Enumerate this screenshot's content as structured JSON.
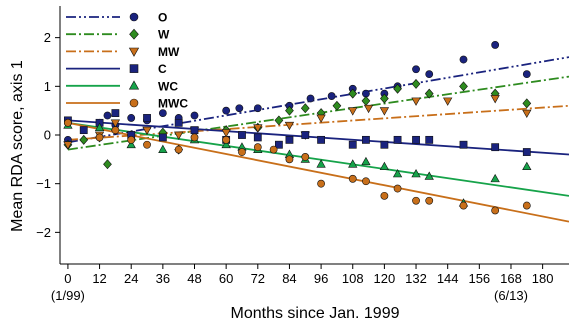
{
  "chart_data": {
    "type": "scatter",
    "title": "",
    "xlabel": "Months since Jan. 1999",
    "ylabel": "Mean RDA score, axis 1",
    "xlim": [
      -3,
      190
    ],
    "ylim": [
      -2.65,
      2.65
    ],
    "xticks": [
      0,
      12,
      24,
      36,
      48,
      60,
      72,
      84,
      96,
      108,
      120,
      132,
      144,
      156,
      168,
      180
    ],
    "yticks": [
      -2,
      -1,
      0,
      1,
      2
    ],
    "x_tick_notes": [
      {
        "x": 0,
        "label": "(1/99)"
      },
      {
        "x": 168,
        "label": "(6/13)"
      }
    ],
    "legend_position": "top-left",
    "grid": false,
    "series": [
      {
        "name": "O",
        "color": "#1a237e",
        "marker": "circle",
        "line_style": "dash-dot-dot",
        "trend": [
          [
            0,
            -0.15
          ],
          [
            190,
            1.6
          ]
        ],
        "points": [
          [
            0,
            -0.1
          ],
          [
            12,
            0.25
          ],
          [
            15,
            0.4
          ],
          [
            18,
            0.2
          ],
          [
            24,
            0.35
          ],
          [
            30,
            0.3
          ],
          [
            36,
            0.45
          ],
          [
            42,
            0.35
          ],
          [
            48,
            0.4
          ],
          [
            60,
            0.5
          ],
          [
            65,
            0.55
          ],
          [
            72,
            0.55
          ],
          [
            84,
            0.6
          ],
          [
            92,
            0.75
          ],
          [
            100,
            0.8
          ],
          [
            108,
            0.95
          ],
          [
            113,
            0.85
          ],
          [
            120,
            0.85
          ],
          [
            125,
            1.0
          ],
          [
            132,
            1.35
          ],
          [
            137,
            1.25
          ],
          [
            150,
            1.55
          ],
          [
            162,
            1.85
          ],
          [
            174,
            1.25
          ]
        ]
      },
      {
        "name": "W",
        "color": "#2e8b1f",
        "marker": "diamond",
        "line_style": "dash-dot",
        "trend": [
          [
            0,
            -0.3
          ],
          [
            190,
            1.2
          ]
        ],
        "points": [
          [
            0,
            -0.2
          ],
          [
            6,
            -0.1
          ],
          [
            12,
            -0.05
          ],
          [
            15,
            -0.6
          ],
          [
            18,
            0.1
          ],
          [
            24,
            0.0
          ],
          [
            36,
            0.05
          ],
          [
            42,
            -0.3
          ],
          [
            60,
            0.1
          ],
          [
            72,
            0.15
          ],
          [
            80,
            0.3
          ],
          [
            84,
            0.5
          ],
          [
            90,
            0.55
          ],
          [
            96,
            0.45
          ],
          [
            102,
            0.6
          ],
          [
            108,
            0.85
          ],
          [
            113,
            0.7
          ],
          [
            120,
            0.75
          ],
          [
            125,
            0.95
          ],
          [
            132,
            1.05
          ],
          [
            137,
            0.85
          ],
          [
            150,
            1.0
          ],
          [
            162,
            0.85
          ],
          [
            174,
            0.65
          ]
        ]
      },
      {
        "name": "MW",
        "color": "#c86f1a",
        "marker": "triangle-down",
        "line_style": "dash-dot",
        "trend": [
          [
            0,
            -0.1
          ],
          [
            190,
            0.6
          ]
        ],
        "points": [
          [
            0,
            -0.2
          ],
          [
            12,
            0.0
          ],
          [
            18,
            0.25
          ],
          [
            24,
            0.0
          ],
          [
            30,
            0.1
          ],
          [
            42,
            0.0
          ],
          [
            48,
            0.1
          ],
          [
            60,
            0.05
          ],
          [
            72,
            0.15
          ],
          [
            84,
            0.2
          ],
          [
            90,
            0.0
          ],
          [
            96,
            0.35
          ],
          [
            108,
            0.5
          ],
          [
            114,
            0.55
          ],
          [
            120,
            0.5
          ],
          [
            132,
            0.7
          ],
          [
            144,
            0.7
          ],
          [
            162,
            0.75
          ],
          [
            174,
            0.45
          ]
        ]
      },
      {
        "name": "C",
        "color": "#1a237e",
        "marker": "square",
        "line_style": "solid",
        "trend": [
          [
            0,
            0.3
          ],
          [
            190,
            -0.4
          ]
        ],
        "points": [
          [
            0,
            0.3
          ],
          [
            6,
            0.1
          ],
          [
            12,
            0.25
          ],
          [
            18,
            0.45
          ],
          [
            24,
            0.0
          ],
          [
            30,
            0.35
          ],
          [
            36,
            -0.05
          ],
          [
            42,
            0.25
          ],
          [
            48,
            0.1
          ],
          [
            60,
            -0.1
          ],
          [
            66,
            0.0
          ],
          [
            72,
            -0.05
          ],
          [
            80,
            -0.2
          ],
          [
            84,
            -0.1
          ],
          [
            90,
            0.0
          ],
          [
            96,
            -0.1
          ],
          [
            108,
            -0.2
          ],
          [
            113,
            -0.1
          ],
          [
            120,
            -0.2
          ],
          [
            125,
            -0.1
          ],
          [
            132,
            -0.1
          ],
          [
            137,
            -0.1
          ],
          [
            150,
            -0.2
          ],
          [
            162,
            -0.25
          ],
          [
            174,
            -0.35
          ]
        ]
      },
      {
        "name": "WC",
        "color": "#16a34a",
        "marker": "triangle-up",
        "line_style": "solid",
        "trend": [
          [
            0,
            0.25
          ],
          [
            190,
            -1.25
          ]
        ],
        "points": [
          [
            0,
            0.2
          ],
          [
            12,
            0.15
          ],
          [
            24,
            -0.2
          ],
          [
            36,
            -0.3
          ],
          [
            48,
            -0.1
          ],
          [
            60,
            -0.2
          ],
          [
            66,
            -0.25
          ],
          [
            72,
            -0.3
          ],
          [
            84,
            -0.4
          ],
          [
            90,
            -0.5
          ],
          [
            96,
            -0.6
          ],
          [
            108,
            -0.6
          ],
          [
            113,
            -0.55
          ],
          [
            120,
            -0.65
          ],
          [
            125,
            -0.8
          ],
          [
            132,
            -0.8
          ],
          [
            137,
            -0.85
          ],
          [
            150,
            -1.4
          ],
          [
            162,
            -0.9
          ],
          [
            174,
            -0.65
          ]
        ]
      },
      {
        "name": "MWC",
        "color": "#c86f1a",
        "marker": "circle",
        "line_style": "solid",
        "trend": [
          [
            0,
            0.25
          ],
          [
            190,
            -1.78
          ]
        ],
        "points": [
          [
            0,
            0.25
          ],
          [
            12,
            -0.05
          ],
          [
            18,
            0.1
          ],
          [
            24,
            -0.1
          ],
          [
            30,
            -0.2
          ],
          [
            42,
            -0.3
          ],
          [
            48,
            -0.05
          ],
          [
            60,
            -0.1
          ],
          [
            66,
            -0.35
          ],
          [
            72,
            -0.25
          ],
          [
            78,
            -0.3
          ],
          [
            84,
            -0.5
          ],
          [
            90,
            -0.45
          ],
          [
            96,
            -1.0
          ],
          [
            108,
            -0.9
          ],
          [
            113,
            -0.95
          ],
          [
            120,
            -1.25
          ],
          [
            125,
            -1.1
          ],
          [
            132,
            -1.35
          ],
          [
            137,
            -1.35
          ],
          [
            150,
            -1.45
          ],
          [
            162,
            -1.55
          ],
          [
            174,
            -1.45
          ]
        ]
      }
    ]
  }
}
